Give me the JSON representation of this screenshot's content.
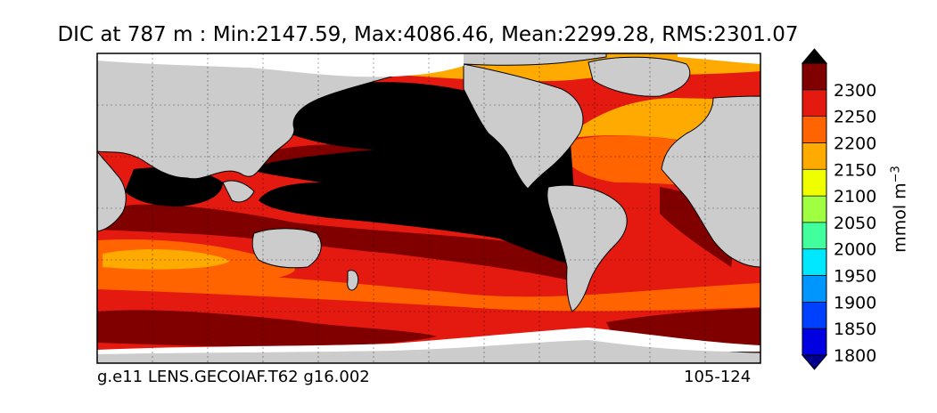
{
  "title": "DIC at 787 m : Min:2147.59, Max:4086.46, Mean:2299.28, RMS:2301.07",
  "footer": {
    "left": "g.e11 LENS.GECOIAF.T62 g16.002",
    "right": "105-124"
  },
  "colorbar": {
    "unit": "mmol m",
    "unit_exponent": "−3",
    "ticks": [
      "2300",
      "2250",
      "2200",
      "2150",
      "2100",
      "2050",
      "2000",
      "1950",
      "1900",
      "1850",
      "1800"
    ],
    "levels": [
      {
        "value": 2350,
        "color": "#000000"
      },
      {
        "value": 2300,
        "color": "#800000"
      },
      {
        "value": 2250,
        "color": "#e41a10"
      },
      {
        "value": 2200,
        "color": "#ff6400"
      },
      {
        "value": 2150,
        "color": "#ffaa00"
      },
      {
        "value": 2100,
        "color": "#f0ff00"
      },
      {
        "value": 2050,
        "color": "#a0ff40"
      },
      {
        "value": 2000,
        "color": "#40ff9c"
      },
      {
        "value": 1950,
        "color": "#00e8ff"
      },
      {
        "value": 1900,
        "color": "#0096ff"
      },
      {
        "value": 1850,
        "color": "#0040ff"
      },
      {
        "value": 1800,
        "color": "#0000e0"
      },
      {
        "value": 1750,
        "color": "#00008c"
      }
    ]
  },
  "colors": {
    "land": "#cccccc",
    "ice": "#ffffff"
  }
}
